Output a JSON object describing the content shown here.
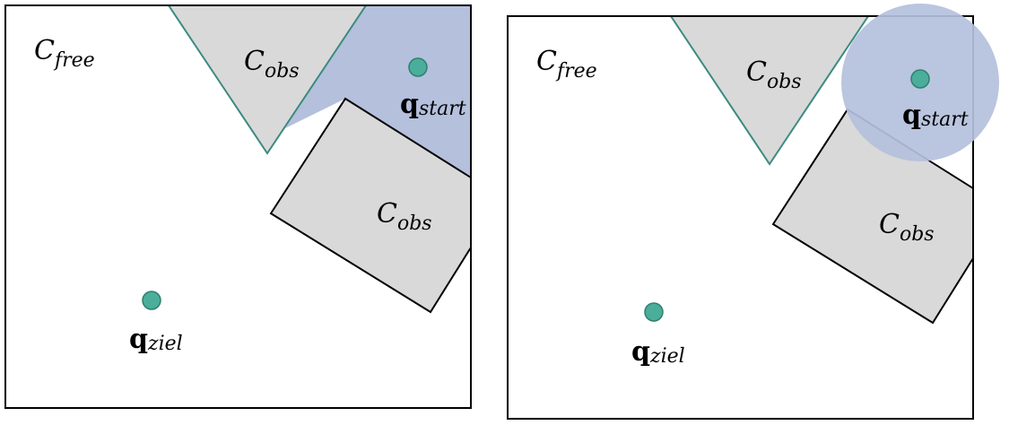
{
  "colors": {
    "obstacle_fill": "#d9d9d9",
    "triangle_stroke": "#3a8a7e",
    "region_fill": "#b4c0dc",
    "point_fill": "#4aae9b",
    "point_stroke": "#2f7f6f"
  },
  "left_panel": {
    "free_label": {
      "main": "C",
      "sub": "free"
    },
    "triangle_label": {
      "main": "C",
      "sub": "obs"
    },
    "rect_label": {
      "main": "C",
      "sub": "obs"
    },
    "start_label": {
      "main": "q",
      "sub": "start"
    },
    "goal_label": {
      "main": "q",
      "sub": "ziel"
    }
  },
  "right_panel": {
    "free_label": {
      "main": "C",
      "sub": "free"
    },
    "triangle_label": {
      "main": "C",
      "sub": "obs"
    },
    "rect_label": {
      "main": "C",
      "sub": "obs"
    },
    "start_label": {
      "main": "q",
      "sub": "start"
    },
    "goal_label": {
      "main": "q",
      "sub": "ziel"
    }
  }
}
